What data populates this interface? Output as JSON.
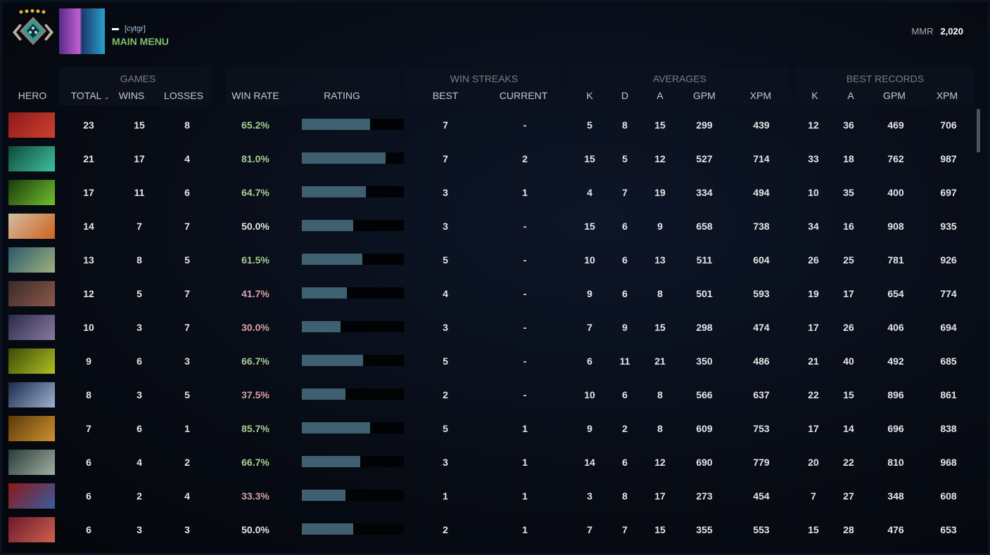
{
  "profile": {
    "name_tag": "[cytgr]",
    "status": "MAIN MENU",
    "mmr_label": "MMR",
    "mmr_value": "2,020"
  },
  "groups": {
    "games": "GAMES",
    "win_streaks": "WIN STREAKS",
    "averages": "AVERAGES",
    "best_records": "BEST RECORDS"
  },
  "headers": {
    "hero": "HERO",
    "total": "TOTAL",
    "wins": "WINS",
    "losses": "LOSSES",
    "win_rate": "WIN RATE",
    "rating": "RATING",
    "best": "BEST",
    "current": "CURRENT",
    "k": "K",
    "d": "D",
    "a": "A",
    "gpm": "GPM",
    "xpm": "XPM",
    "best_k": "K",
    "best_a": "A",
    "best_gpm": "GPM",
    "best_xpm": "XPM"
  },
  "colors": {
    "win_good": "#a9cf98",
    "win_bad": "#d9a3a8",
    "win_even": "#e6e6e6",
    "bar": "#3f6070"
  },
  "rows": [
    {
      "c": [
        "#8a1a1a",
        "#d04030"
      ],
      "total": "23",
      "wins": "15",
      "losses": "8",
      "win_rate": "65.2%",
      "rating": 0.67,
      "best": "7",
      "current": "-",
      "k": "5",
      "d": "8",
      "a": "15",
      "gpm": "299",
      "xpm": "439",
      "bk": "12",
      "ba": "36",
      "bgpm": "469",
      "bxpm": "706"
    },
    {
      "c": [
        "#0d4a3a",
        "#40c0a0"
      ],
      "total": "21",
      "wins": "17",
      "losses": "4",
      "win_rate": "81.0%",
      "rating": 0.82,
      "best": "7",
      "current": "2",
      "k": "15",
      "d": "5",
      "a": "12",
      "gpm": "527",
      "xpm": "714",
      "bk": "33",
      "ba": "18",
      "bgpm": "762",
      "bxpm": "987"
    },
    {
      "c": [
        "#1a3a0a",
        "#70c030"
      ],
      "total": "17",
      "wins": "11",
      "losses": "6",
      "win_rate": "64.7%",
      "rating": 0.63,
      "best": "3",
      "current": "1",
      "k": "4",
      "d": "7",
      "a": "19",
      "gpm": "334",
      "xpm": "494",
      "bk": "10",
      "ba": "35",
      "bgpm": "400",
      "bxpm": "697"
    },
    {
      "c": [
        "#d0c0a0",
        "#d06020"
      ],
      "total": "14",
      "wins": "7",
      "losses": "7",
      "win_rate": "50.0%",
      "rating": 0.5,
      "best": "3",
      "current": "-",
      "k": "15",
      "d": "6",
      "a": "9",
      "gpm": "658",
      "xpm": "738",
      "bk": "34",
      "ba": "16",
      "bgpm": "908",
      "bxpm": "935"
    },
    {
      "c": [
        "#2a5a6a",
        "#a0b080"
      ],
      "total": "13",
      "wins": "8",
      "losses": "5",
      "win_rate": "61.5%",
      "rating": 0.59,
      "best": "5",
      "current": "-",
      "k": "10",
      "d": "6",
      "a": "13",
      "gpm": "511",
      "xpm": "604",
      "bk": "26",
      "ba": "25",
      "bgpm": "781",
      "bxpm": "926"
    },
    {
      "c": [
        "#3a2a2a",
        "#8a5a4a"
      ],
      "total": "12",
      "wins": "5",
      "losses": "7",
      "win_rate": "41.7%",
      "rating": 0.44,
      "best": "4",
      "current": "-",
      "k": "9",
      "d": "6",
      "a": "8",
      "gpm": "501",
      "xpm": "593",
      "bk": "19",
      "ba": "17",
      "bgpm": "654",
      "bxpm": "774"
    },
    {
      "c": [
        "#2a2a4a",
        "#8a7aa0"
      ],
      "total": "10",
      "wins": "3",
      "losses": "7",
      "win_rate": "30.0%",
      "rating": 0.38,
      "best": "3",
      "current": "-",
      "k": "7",
      "d": "9",
      "a": "15",
      "gpm": "298",
      "xpm": "474",
      "bk": "17",
      "ba": "26",
      "bgpm": "406",
      "bxpm": "694"
    },
    {
      "c": [
        "#3a4a0a",
        "#b0c020"
      ],
      "total": "9",
      "wins": "6",
      "losses": "3",
      "win_rate": "66.7%",
      "rating": 0.6,
      "best": "5",
      "current": "-",
      "k": "6",
      "d": "11",
      "a": "21",
      "gpm": "350",
      "xpm": "486",
      "bk": "21",
      "ba": "40",
      "bgpm": "492",
      "bxpm": "685"
    },
    {
      "c": [
        "#1a2a4a",
        "#a0b0d0"
      ],
      "total": "8",
      "wins": "3",
      "losses": "5",
      "win_rate": "37.5%",
      "rating": 0.43,
      "best": "2",
      "current": "-",
      "k": "10",
      "d": "6",
      "a": "8",
      "gpm": "566",
      "xpm": "637",
      "bk": "22",
      "ba": "15",
      "bgpm": "896",
      "bxpm": "861"
    },
    {
      "c": [
        "#5a3a0a",
        "#d09030"
      ],
      "total": "7",
      "wins": "6",
      "losses": "1",
      "win_rate": "85.7%",
      "rating": 0.67,
      "best": "5",
      "current": "1",
      "k": "9",
      "d": "2",
      "a": "8",
      "gpm": "609",
      "xpm": "753",
      "bk": "17",
      "ba": "14",
      "bgpm": "696",
      "bxpm": "838"
    },
    {
      "c": [
        "#2a3a3a",
        "#a0b0a0"
      ],
      "total": "6",
      "wins": "4",
      "losses": "2",
      "win_rate": "66.7%",
      "rating": 0.57,
      "best": "3",
      "current": "1",
      "k": "14",
      "d": "6",
      "a": "12",
      "gpm": "690",
      "xpm": "779",
      "bk": "20",
      "ba": "22",
      "bgpm": "810",
      "bxpm": "968"
    },
    {
      "c": [
        "#8a1a1a",
        "#3a5aa0"
      ],
      "total": "6",
      "wins": "2",
      "losses": "4",
      "win_rate": "33.3%",
      "rating": 0.43,
      "best": "1",
      "current": "1",
      "k": "3",
      "d": "8",
      "a": "17",
      "gpm": "273",
      "xpm": "454",
      "bk": "7",
      "ba": "27",
      "bgpm": "348",
      "bxpm": "608"
    },
    {
      "c": [
        "#6a1a2a",
        "#d06050"
      ],
      "total": "6",
      "wins": "3",
      "losses": "3",
      "win_rate": "50.0%",
      "rating": 0.5,
      "best": "2",
      "current": "1",
      "k": "7",
      "d": "7",
      "a": "15",
      "gpm": "355",
      "xpm": "553",
      "bk": "15",
      "ba": "28",
      "bgpm": "476",
      "bxpm": "653"
    }
  ]
}
